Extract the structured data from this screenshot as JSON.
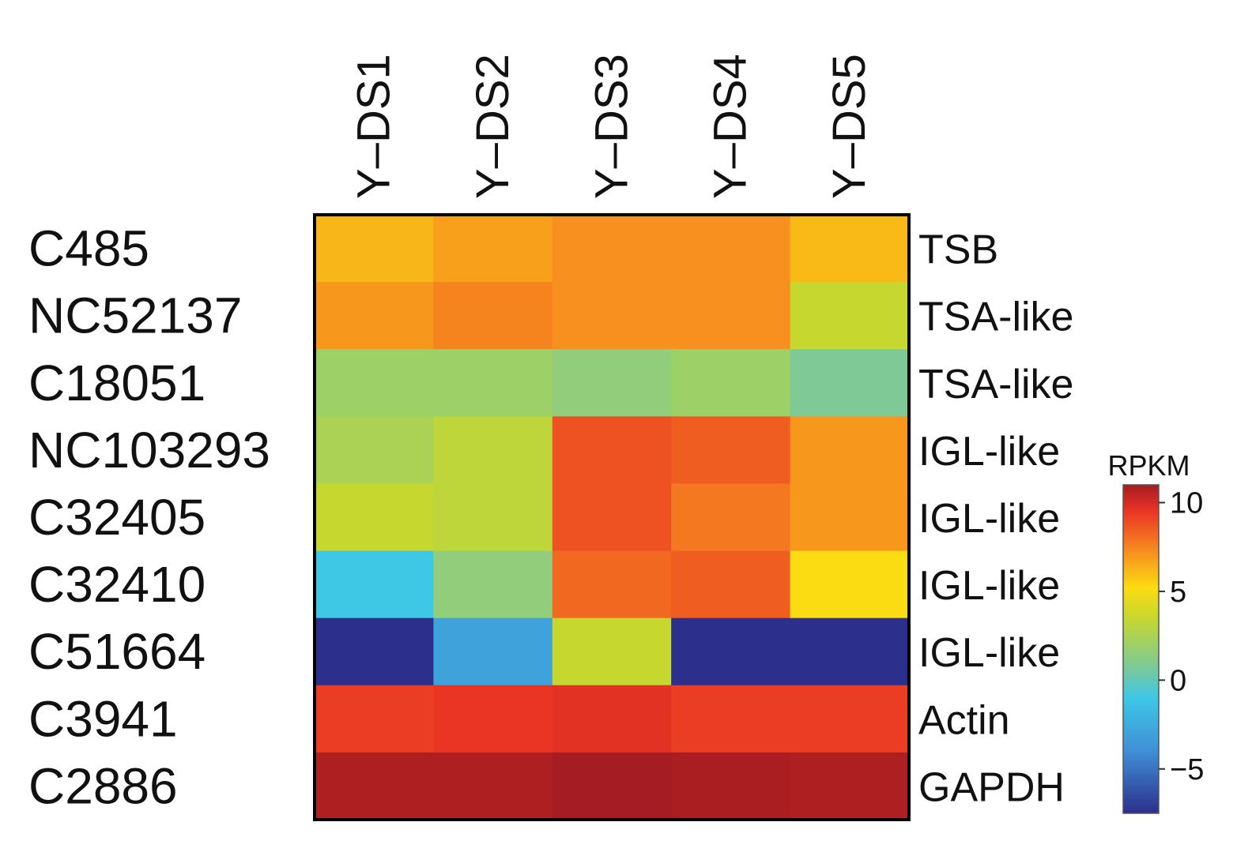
{
  "chart_data": {
    "type": "heatmap",
    "title": "",
    "columns": [
      "Y–DS1",
      "Y–DS2",
      "Y–DS3",
      "Y–DS4",
      "Y–DS5"
    ],
    "rows": [
      {
        "id": "C485",
        "annotation": "TSB",
        "values": [
          6.2,
          6.8,
          7.2,
          7.2,
          6.1
        ]
      },
      {
        "id": "NC52137",
        "annotation": "TSA-like",
        "values": [
          7.0,
          7.5,
          7.2,
          7.2,
          3.5
        ]
      },
      {
        "id": "C18051",
        "annotation": "TSA-like",
        "values": [
          2.0,
          2.0,
          1.5,
          2.0,
          0.8
        ]
      },
      {
        "id": "NC103293",
        "annotation": "IGL-like",
        "values": [
          2.5,
          3.2,
          8.8,
          8.5,
          7.0
        ]
      },
      {
        "id": "C32405",
        "annotation": "IGL-like",
        "values": [
          3.5,
          3.2,
          8.8,
          7.8,
          7.0
        ]
      },
      {
        "id": "C32410",
        "annotation": "IGL-like",
        "values": [
          -1.0,
          1.5,
          8.2,
          8.5,
          5.2
        ]
      },
      {
        "id": "C51664",
        "annotation": "IGL-like",
        "values": [
          -7.5,
          -3.0,
          3.5,
          -7.5,
          -7.5
        ]
      },
      {
        "id": "C3941",
        "annotation": "Actin",
        "values": [
          9.3,
          9.5,
          9.7,
          9.3,
          9.3
        ]
      },
      {
        "id": "C2886",
        "annotation": "GAPDH",
        "values": [
          10.8,
          10.8,
          11.0,
          10.9,
          10.8
        ]
      }
    ],
    "colorbar": {
      "label": "RPKM",
      "range": [
        -7.5,
        11
      ],
      "ticks": [
        {
          "value": 10,
          "label": "10"
        },
        {
          "value": 5,
          "label": "5"
        },
        {
          "value": 0,
          "label": "0"
        },
        {
          "value": -5,
          "label": "−5"
        }
      ],
      "colors": [
        "#2c2f8c",
        "#3f8fd6",
        "#3ec8e6",
        "#7ec996",
        "#c6d82f",
        "#fbdc12",
        "#f7901e",
        "#ea3524",
        "#a51c22"
      ],
      "color_stops": [
        -7.5,
        -4,
        -1,
        0.8,
        3.5,
        5.2,
        7.2,
        9.5,
        11
      ]
    }
  }
}
